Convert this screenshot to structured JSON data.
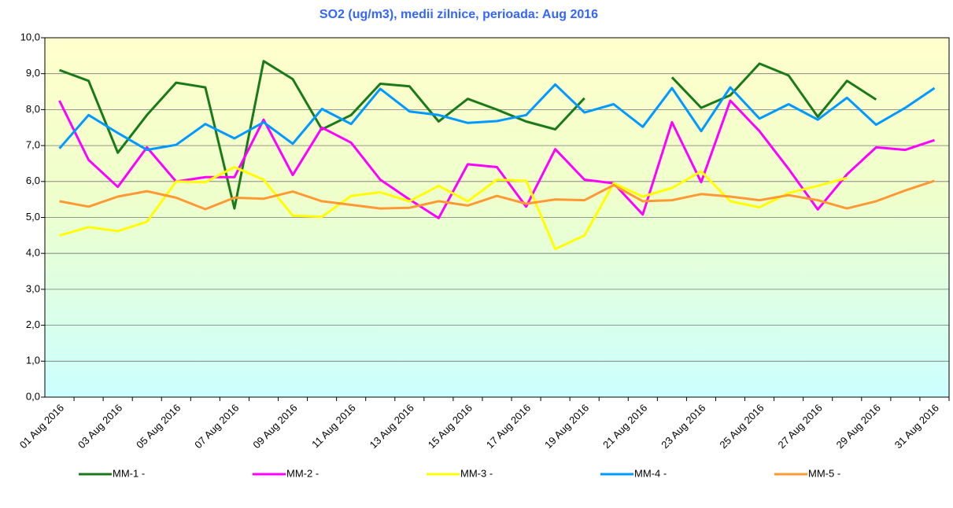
{
  "chart_data": {
    "type": "line",
    "title": "SO2 (ug/m3), medii zilnice, perioada: Aug 2016",
    "categories": [
      "01 Aug 2016",
      null,
      "03 Aug 2016",
      null,
      "05 Aug 2016",
      null,
      "07 Aug 2016",
      null,
      "09 Aug 2016",
      null,
      "11 Aug 2016",
      null,
      "13 Aug 2016",
      null,
      "15 Aug 2016",
      null,
      "17 Aug 2016",
      null,
      "19 Aug 2016",
      null,
      "21 Aug 2016",
      null,
      "23 Aug 2016",
      null,
      "25 Aug 2016",
      null,
      "27 Aug 2016",
      null,
      "29 Aug 2016",
      null,
      "31 Aug 2016"
    ],
    "ylim": [
      0,
      10
    ],
    "yticks": [
      {
        "value": 0,
        "label": "0,0"
      },
      {
        "value": 1,
        "label": "1,0"
      },
      {
        "value": 2,
        "label": "2,0"
      },
      {
        "value": 3,
        "label": "3,0"
      },
      {
        "value": 4,
        "label": "4,0"
      },
      {
        "value": 5,
        "label": "5,0"
      },
      {
        "value": 6,
        "label": "6,0"
      },
      {
        "value": 7,
        "label": "7,0"
      },
      {
        "value": 8,
        "label": "8,0"
      },
      {
        "value": 9,
        "label": "9,0"
      },
      {
        "value": 10,
        "label": "10,0"
      }
    ],
    "grid": true,
    "legend": "bottom",
    "series": [
      {
        "name": "MM-1 -",
        "color": "#1a7a1a",
        "values": [
          9.1,
          8.8,
          6.8,
          7.85,
          8.75,
          8.62,
          5.25,
          9.35,
          8.85,
          7.45,
          7.85,
          8.72,
          8.65,
          7.67,
          8.3,
          8.0,
          7.67,
          7.45,
          8.32,
          null,
          null,
          8.9,
          8.05,
          8.4,
          9.28,
          8.95,
          7.8,
          8.8,
          8.28,
          null,
          null
        ]
      },
      {
        "name": "MM-2 -",
        "color": "#ff00ff",
        "values": [
          8.25,
          6.6,
          5.85,
          6.95,
          6.0,
          6.12,
          6.12,
          7.72,
          6.18,
          7.5,
          7.08,
          6.05,
          5.5,
          4.98,
          6.48,
          6.4,
          5.3,
          6.9,
          6.05,
          5.95,
          5.08,
          7.65,
          5.98,
          8.25,
          7.4,
          6.35,
          5.22,
          6.2,
          6.95,
          6.88,
          7.15
        ]
      },
      {
        "name": "MM-3 -",
        "color": "#ffff00",
        "values": [
          4.5,
          4.73,
          4.62,
          4.88,
          6.0,
          5.98,
          6.4,
          6.05,
          5.05,
          5.02,
          5.6,
          5.7,
          5.45,
          5.88,
          5.45,
          6.05,
          6.02,
          4.12,
          4.5,
          5.95,
          5.58,
          5.82,
          6.28,
          5.45,
          5.28,
          5.68,
          5.88,
          6.1,
          null,
          null,
          null
        ]
      },
      {
        "name": "MM-4 -",
        "color": "#0099ff",
        "values": [
          6.92,
          7.85,
          7.35,
          6.88,
          7.02,
          7.6,
          7.2,
          7.65,
          7.05,
          8.02,
          7.6,
          8.58,
          7.95,
          7.85,
          7.63,
          7.68,
          7.85,
          8.7,
          7.92,
          8.15,
          7.52,
          8.6,
          7.4,
          8.62,
          7.75,
          8.15,
          7.72,
          8.33,
          7.58,
          8.05,
          8.6
        ]
      },
      {
        "name": "MM-5 -",
        "color": "#ff9933",
        "values": [
          5.45,
          5.3,
          5.58,
          5.73,
          5.55,
          5.23,
          5.55,
          5.52,
          5.72,
          5.45,
          5.35,
          5.25,
          5.27,
          5.45,
          5.33,
          5.6,
          5.38,
          5.5,
          5.48,
          5.9,
          5.45,
          5.48,
          5.65,
          5.58,
          5.48,
          5.62,
          5.48,
          5.25,
          5.45,
          5.75,
          6.02
        ]
      }
    ]
  }
}
